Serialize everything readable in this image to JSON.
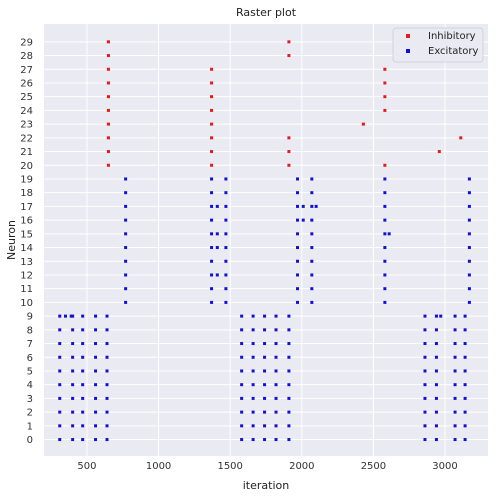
{
  "chart_data": {
    "type": "scatter",
    "title": "Raster plot",
    "xlabel": "iteration",
    "ylabel": "Neuron",
    "xlim": [
      200,
      3300
    ],
    "ylim": [
      -1.2,
      30.3
    ],
    "xticks": [
      500,
      1000,
      1500,
      2000,
      2500,
      3000
    ],
    "yticks": [
      0,
      1,
      2,
      3,
      4,
      5,
      6,
      7,
      8,
      9,
      10,
      11,
      12,
      13,
      14,
      15,
      16,
      17,
      18,
      19,
      20,
      21,
      22,
      23,
      24,
      25,
      26,
      27,
      28,
      29
    ],
    "grid": true,
    "legend": "top-right",
    "series": [
      {
        "name": "Inhibitory",
        "color": "#e41a1c",
        "points": [
          [
            650,
            20
          ],
          [
            650,
            21
          ],
          [
            650,
            22
          ],
          [
            650,
            23
          ],
          [
            650,
            24
          ],
          [
            650,
            25
          ],
          [
            650,
            26
          ],
          [
            650,
            27
          ],
          [
            650,
            28
          ],
          [
            650,
            29
          ],
          [
            1370,
            20
          ],
          [
            1370,
            21
          ],
          [
            1370,
            22
          ],
          [
            1370,
            23
          ],
          [
            1370,
            24
          ],
          [
            1370,
            25
          ],
          [
            1370,
            26
          ],
          [
            1370,
            27
          ],
          [
            1910,
            20
          ],
          [
            1910,
            21
          ],
          [
            1910,
            22
          ],
          [
            1910,
            28
          ],
          [
            1910,
            29
          ],
          [
            2430,
            23
          ],
          [
            2580,
            20
          ],
          [
            2580,
            24
          ],
          [
            2580,
            25
          ],
          [
            2580,
            26
          ],
          [
            2580,
            27
          ],
          [
            2960,
            21
          ],
          [
            3110,
            22
          ]
        ]
      },
      {
        "name": "Excitatory",
        "color": "#1010d8",
        "points": [
          [
            770,
            10
          ],
          [
            770,
            11
          ],
          [
            770,
            12
          ],
          [
            770,
            13
          ],
          [
            770,
            14
          ],
          [
            770,
            15
          ],
          [
            770,
            16
          ],
          [
            770,
            17
          ],
          [
            770,
            18
          ],
          [
            770,
            19
          ],
          [
            1370,
            10
          ],
          [
            1370,
            11
          ],
          [
            1370,
            12
          ],
          [
            1370,
            13
          ],
          [
            1370,
            14
          ],
          [
            1370,
            15
          ],
          [
            1370,
            16
          ],
          [
            1370,
            17
          ],
          [
            1370,
            18
          ],
          [
            1370,
            19
          ],
          [
            1410,
            17
          ],
          [
            1410,
            15
          ],
          [
            1410,
            14
          ],
          [
            1410,
            12
          ],
          [
            1470,
            10
          ],
          [
            1470,
            11
          ],
          [
            1470,
            12
          ],
          [
            1470,
            13
          ],
          [
            1470,
            14
          ],
          [
            1470,
            15
          ],
          [
            1470,
            16
          ],
          [
            1470,
            17
          ],
          [
            1470,
            18
          ],
          [
            1470,
            19
          ],
          [
            1970,
            10
          ],
          [
            1970,
            11
          ],
          [
            1970,
            12
          ],
          [
            1970,
            13
          ],
          [
            1970,
            14
          ],
          [
            1970,
            15
          ],
          [
            1970,
            16
          ],
          [
            1970,
            17
          ],
          [
            1970,
            18
          ],
          [
            1970,
            19
          ],
          [
            2010,
            17
          ],
          [
            2010,
            16
          ],
          [
            2070,
            10
          ],
          [
            2070,
            11
          ],
          [
            2070,
            12
          ],
          [
            2070,
            13
          ],
          [
            2070,
            14
          ],
          [
            2070,
            15
          ],
          [
            2070,
            16
          ],
          [
            2070,
            17
          ],
          [
            2070,
            18
          ],
          [
            2070,
            19
          ],
          [
            2100,
            17
          ],
          [
            2580,
            10
          ],
          [
            2580,
            11
          ],
          [
            2580,
            12
          ],
          [
            2580,
            13
          ],
          [
            2580,
            14
          ],
          [
            2580,
            15
          ],
          [
            2580,
            16
          ],
          [
            2580,
            17
          ],
          [
            2580,
            18
          ],
          [
            2580,
            19
          ],
          [
            2610,
            15
          ],
          [
            3170,
            10
          ],
          [
            3170,
            11
          ],
          [
            3170,
            12
          ],
          [
            3170,
            13
          ],
          [
            3170,
            14
          ],
          [
            3170,
            15
          ],
          [
            3170,
            16
          ],
          [
            3170,
            17
          ],
          [
            3170,
            18
          ],
          [
            3170,
            19
          ],
          [
            310,
            0
          ],
          [
            310,
            1
          ],
          [
            310,
            2
          ],
          [
            310,
            3
          ],
          [
            310,
            4
          ],
          [
            310,
            5
          ],
          [
            310,
            6
          ],
          [
            310,
            7
          ],
          [
            310,
            8
          ],
          [
            310,
            9
          ],
          [
            350,
            9
          ],
          [
            390,
            9
          ],
          [
            400,
            0
          ],
          [
            400,
            1
          ],
          [
            400,
            2
          ],
          [
            400,
            3
          ],
          [
            400,
            4
          ],
          [
            400,
            5
          ],
          [
            400,
            6
          ],
          [
            400,
            7
          ],
          [
            400,
            8
          ],
          [
            400,
            9
          ],
          [
            470,
            0
          ],
          [
            470,
            1
          ],
          [
            470,
            2
          ],
          [
            470,
            3
          ],
          [
            470,
            4
          ],
          [
            470,
            5
          ],
          [
            470,
            6
          ],
          [
            470,
            7
          ],
          [
            470,
            8
          ],
          [
            470,
            9
          ],
          [
            560,
            0
          ],
          [
            560,
            1
          ],
          [
            560,
            2
          ],
          [
            560,
            3
          ],
          [
            560,
            4
          ],
          [
            560,
            5
          ],
          [
            560,
            6
          ],
          [
            560,
            7
          ],
          [
            560,
            8
          ],
          [
            560,
            9
          ],
          [
            640,
            0
          ],
          [
            640,
            1
          ],
          [
            640,
            2
          ],
          [
            640,
            3
          ],
          [
            640,
            4
          ],
          [
            640,
            5
          ],
          [
            640,
            6
          ],
          [
            640,
            7
          ],
          [
            640,
            8
          ],
          [
            640,
            9
          ],
          [
            1580,
            0
          ],
          [
            1580,
            1
          ],
          [
            1580,
            2
          ],
          [
            1580,
            3
          ],
          [
            1580,
            4
          ],
          [
            1580,
            5
          ],
          [
            1580,
            6
          ],
          [
            1580,
            7
          ],
          [
            1580,
            8
          ],
          [
            1580,
            9
          ],
          [
            1660,
            0
          ],
          [
            1660,
            1
          ],
          [
            1660,
            2
          ],
          [
            1660,
            3
          ],
          [
            1660,
            4
          ],
          [
            1660,
            5
          ],
          [
            1660,
            6
          ],
          [
            1660,
            7
          ],
          [
            1660,
            8
          ],
          [
            1660,
            9
          ],
          [
            1740,
            0
          ],
          [
            1740,
            1
          ],
          [
            1740,
            2
          ],
          [
            1740,
            3
          ],
          [
            1740,
            4
          ],
          [
            1740,
            5
          ],
          [
            1740,
            6
          ],
          [
            1740,
            7
          ],
          [
            1740,
            8
          ],
          [
            1740,
            9
          ],
          [
            1820,
            0
          ],
          [
            1820,
            1
          ],
          [
            1820,
            2
          ],
          [
            1820,
            3
          ],
          [
            1820,
            4
          ],
          [
            1820,
            5
          ],
          [
            1820,
            6
          ],
          [
            1820,
            7
          ],
          [
            1820,
            8
          ],
          [
            1820,
            9
          ],
          [
            1910,
            0
          ],
          [
            1910,
            1
          ],
          [
            1910,
            2
          ],
          [
            1910,
            3
          ],
          [
            1910,
            4
          ],
          [
            1910,
            5
          ],
          [
            1910,
            6
          ],
          [
            1910,
            7
          ],
          [
            1910,
            8
          ],
          [
            1910,
            9
          ],
          [
            2860,
            0
          ],
          [
            2860,
            1
          ],
          [
            2860,
            2
          ],
          [
            2860,
            3
          ],
          [
            2860,
            4
          ],
          [
            2860,
            5
          ],
          [
            2860,
            6
          ],
          [
            2860,
            7
          ],
          [
            2860,
            8
          ],
          [
            2860,
            9
          ],
          [
            2940,
            0
          ],
          [
            2940,
            1
          ],
          [
            2940,
            2
          ],
          [
            2940,
            3
          ],
          [
            2940,
            4
          ],
          [
            2940,
            5
          ],
          [
            2940,
            6
          ],
          [
            2940,
            7
          ],
          [
            2940,
            8
          ],
          [
            2940,
            9
          ],
          [
            2970,
            9
          ],
          [
            3070,
            0
          ],
          [
            3070,
            1
          ],
          [
            3070,
            2
          ],
          [
            3070,
            3
          ],
          [
            3070,
            4
          ],
          [
            3070,
            5
          ],
          [
            3070,
            6
          ],
          [
            3070,
            7
          ],
          [
            3070,
            8
          ],
          [
            3070,
            9
          ],
          [
            3140,
            0
          ],
          [
            3140,
            1
          ],
          [
            3140,
            2
          ],
          [
            3140,
            3
          ],
          [
            3140,
            4
          ],
          [
            3140,
            5
          ],
          [
            3140,
            6
          ],
          [
            3140,
            7
          ],
          [
            3140,
            8
          ],
          [
            3140,
            9
          ]
        ]
      }
    ]
  }
}
